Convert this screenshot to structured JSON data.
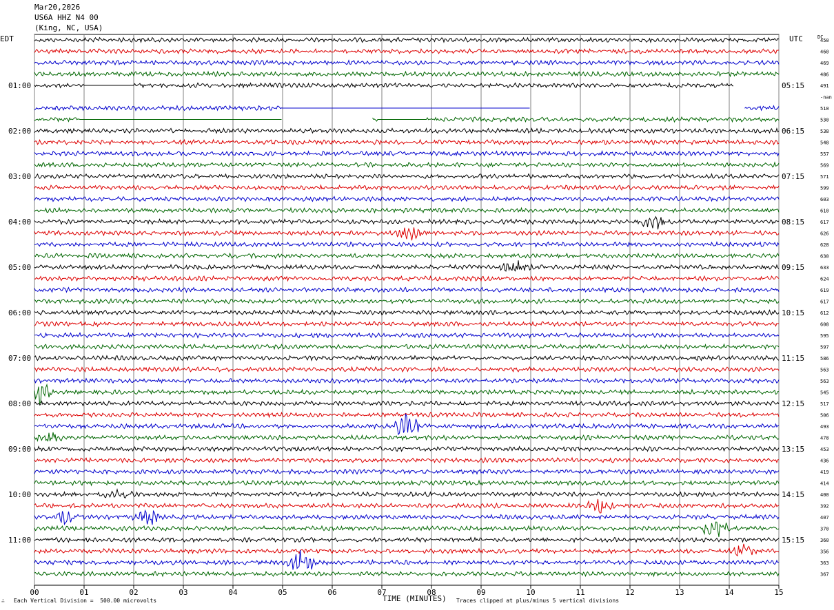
{
  "header": {
    "date": "Mar20,2026",
    "station": "US6A HHZ N4 00",
    "location": "(King, NC, USA)"
  },
  "left_tz": "EDT",
  "right_tz": "UTC",
  "dc_label": "DC",
  "footer": {
    "scale": "Each Vertical Division =  500.00 microvolts",
    "xlabel": "TIME (MINUTES)",
    "clip": "Traces clipped at plus/minus 5 vertical divisions",
    "logo": "∴"
  },
  "chart_data": {
    "type": "line",
    "title": "",
    "xlabel": "TIME (MINUTES)",
    "xlim": [
      0,
      15
    ],
    "x_ticks": [
      "00",
      "01",
      "02",
      "03",
      "04",
      "05",
      "06",
      "07",
      "08",
      "09",
      "10",
      "11",
      "12",
      "13",
      "14",
      "15"
    ],
    "left_time_labels": [
      "01:00",
      "02:00",
      "03:00",
      "04:00",
      "05:00",
      "06:00",
      "07:00",
      "08:00",
      "09:00",
      "10:00",
      "11:00"
    ],
    "right_time_labels": [
      "05:15",
      "06:15",
      "07:15",
      "08:15",
      "09:15",
      "10:15",
      "11:15",
      "12:15",
      "13:15",
      "14:15",
      "15:15"
    ],
    "trace_colors": [
      "#000000",
      "#dd0000",
      "#0000cc",
      "#006600"
    ],
    "dc_offsets": [
      "450",
      "460",
      "469",
      "486",
      "491",
      "-nan",
      "510",
      "530",
      "538",
      "548",
      "557",
      "569",
      "571",
      "599",
      "603",
      "610",
      "617",
      "626",
      "628",
      "630",
      "633",
      "624",
      "619",
      "617",
      "612",
      "608",
      "595",
      "597",
      "586",
      "563",
      "563",
      "545",
      "517",
      "506",
      "493",
      "478",
      "453",
      "436",
      "419",
      "414",
      "400",
      "392",
      "407",
      "370",
      "360",
      "356",
      "363",
      "367"
    ],
    "gaps": [
      {
        "row": 4,
        "start": 14.1,
        "end": 15
      },
      {
        "row": 5,
        "start": 0,
        "end": 15
      },
      {
        "row": 6,
        "start": 10.0,
        "end": 14.3
      },
      {
        "row": 7,
        "start": 5.0,
        "end": 6.8
      }
    ],
    "flatlines": [
      {
        "row": 4,
        "start": 1.0,
        "end": 2.0
      },
      {
        "row": 6,
        "start": 5.0,
        "end": 10.0
      },
      {
        "row": 7,
        "start": 0.9,
        "end": 5.0
      },
      {
        "row": 7,
        "start": 6.9,
        "end": 7.9
      }
    ],
    "events": [
      {
        "row": 17,
        "minute": 7.6,
        "amp": 2
      },
      {
        "row": 16,
        "minute": 12.5,
        "amp": 2
      },
      {
        "row": 20,
        "minute": 9.7,
        "amp": 2
      },
      {
        "row": 31,
        "minute": 0.1,
        "amp": 3
      },
      {
        "row": 34,
        "minute": 7.5,
        "amp": 4
      },
      {
        "row": 35,
        "minute": 0.3,
        "amp": 1.5
      },
      {
        "row": 40,
        "minute": 1.7,
        "amp": 1.5
      },
      {
        "row": 42,
        "minute": 0.6,
        "amp": 2
      },
      {
        "row": 42,
        "minute": 2.3,
        "amp": 2.5
      },
      {
        "row": 41,
        "minute": 11.4,
        "amp": 2
      },
      {
        "row": 43,
        "minute": 13.7,
        "amp": 3
      },
      {
        "row": 45,
        "minute": 14.3,
        "amp": 2
      },
      {
        "row": 46,
        "minute": 5.4,
        "amp": 4
      }
    ]
  }
}
